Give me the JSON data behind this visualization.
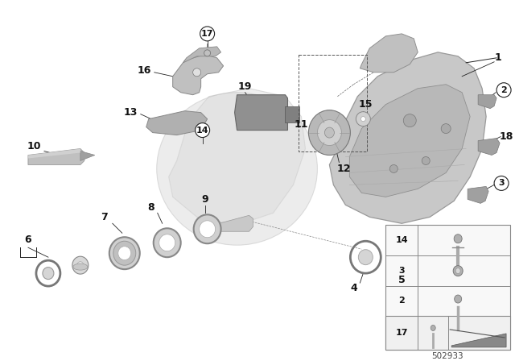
{
  "bg_color": "#ffffff",
  "fig_width": 6.4,
  "fig_height": 4.48,
  "dpi": 100,
  "part_number": "502933",
  "line_color": "#222222",
  "text_color": "#111111",
  "gray_light": "#d8d8d8",
  "gray_mid": "#b0b0b0",
  "gray_dark": "#888888",
  "gray_very_light": "#e8e8e8"
}
